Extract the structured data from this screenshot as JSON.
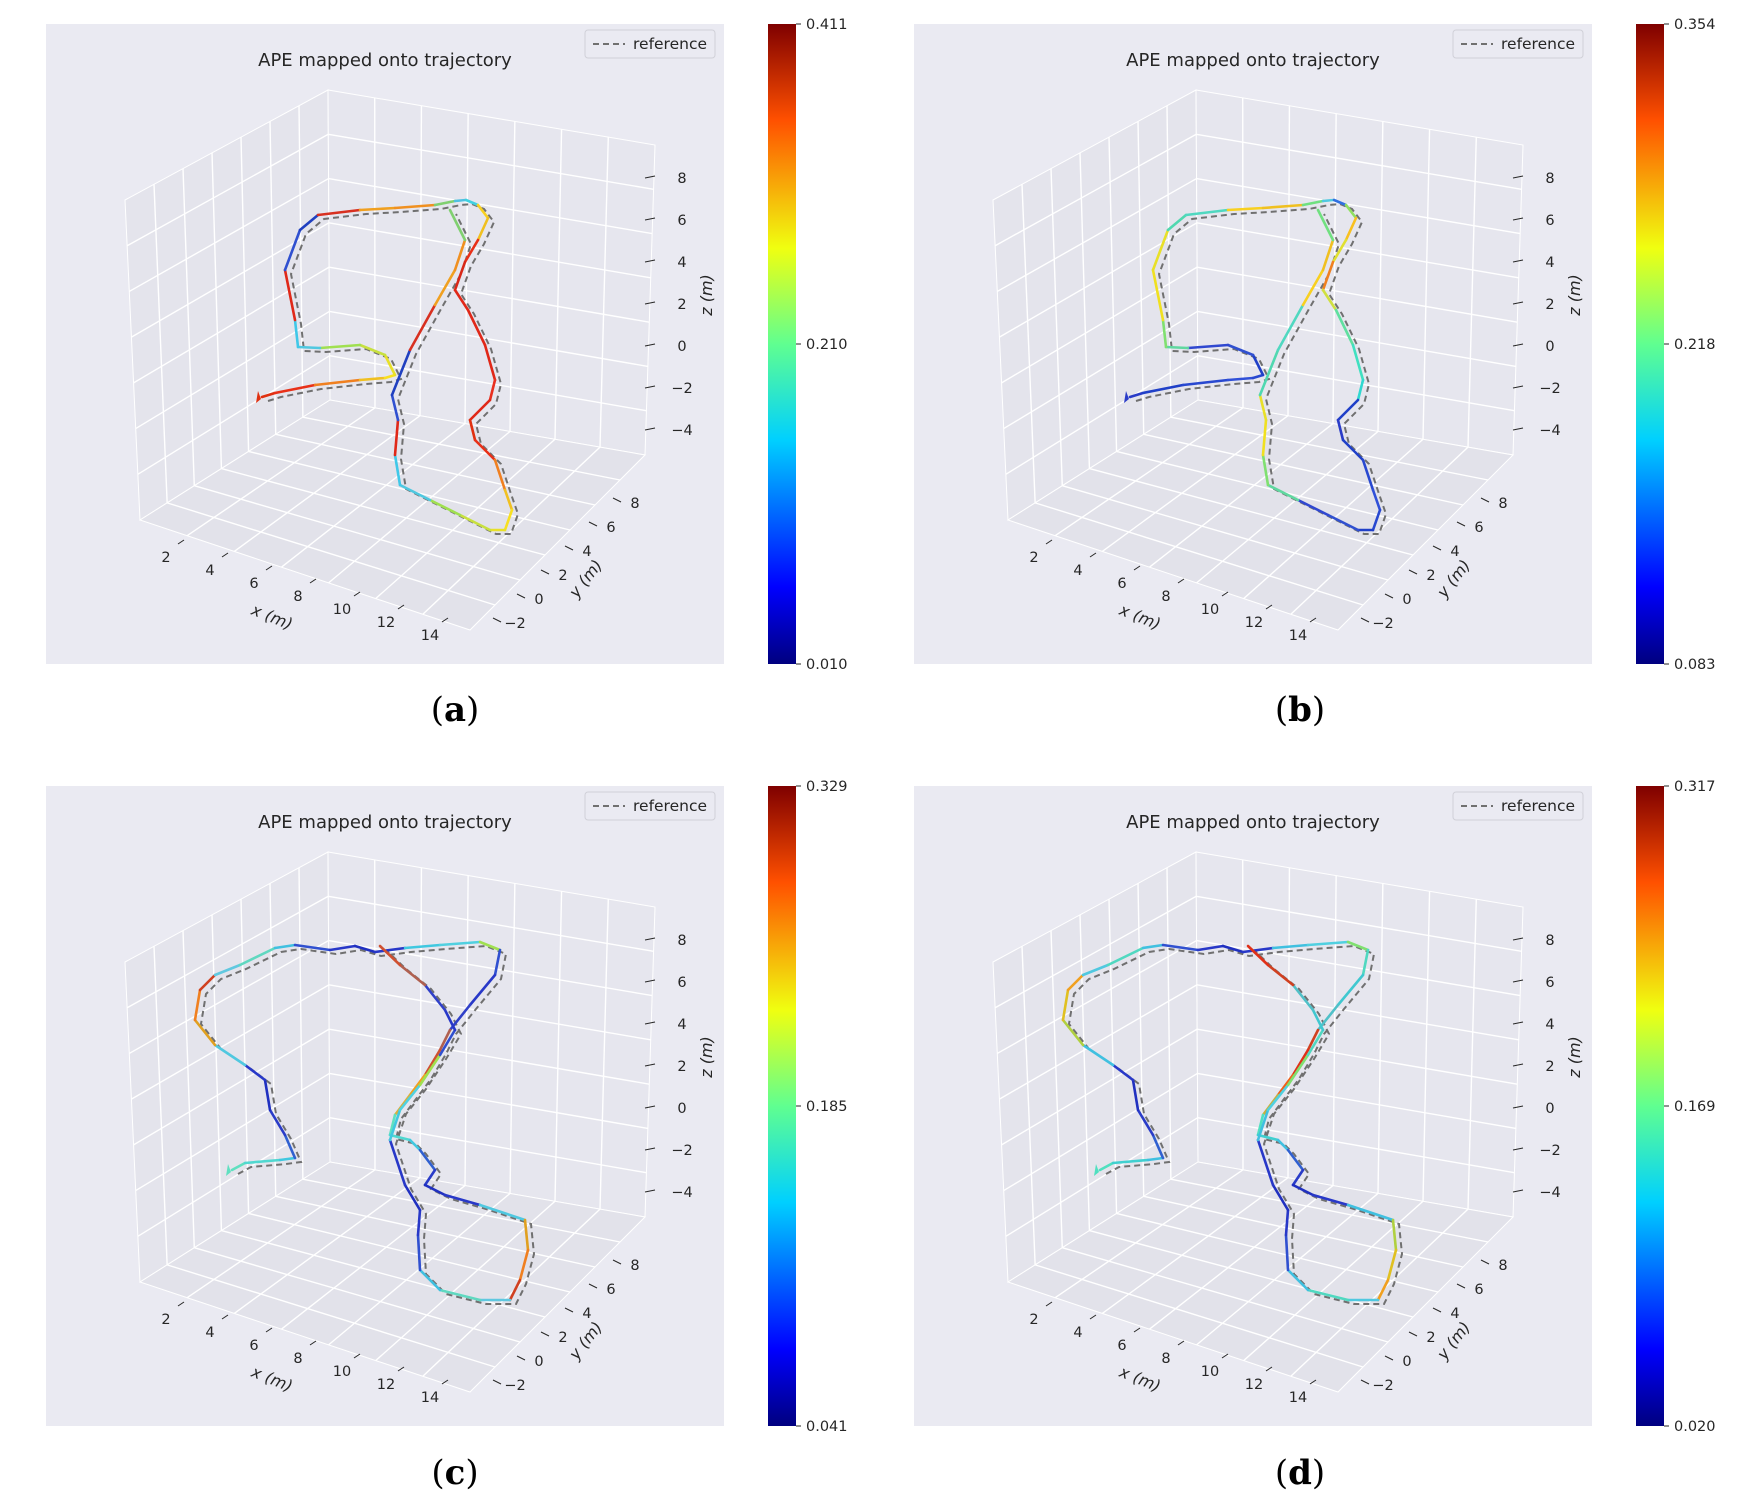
{
  "chart_data": [
    {
      "panel": "a",
      "type": "line",
      "subtype": "3d-trajectory",
      "title": "APE mapped onto trajectory",
      "legend": [
        "reference"
      ],
      "legend_position": "top-right",
      "xlabel": "x (m)",
      "ylabel": "y (m)",
      "zlabel": "z (m)",
      "x_ticks": [
        "2",
        "4",
        "6",
        "8",
        "10",
        "12",
        "14"
      ],
      "y_ticks": [
        "−2",
        "0",
        "2",
        "4",
        "6",
        "8"
      ],
      "z_ticks": [
        "−4",
        "−2",
        "0",
        "2",
        "4",
        "6",
        "8"
      ],
      "grid": true,
      "colorbar": {
        "colormap": "jet",
        "min": "0.010",
        "mid": "0.210",
        "max": "0.411"
      },
      "trajectory_colors": [
        "#e03010",
        "#e83018",
        "#f08020",
        "#f0c020",
        "#f8e020",
        "#e8e028",
        "#c8e040",
        "#a0e050",
        "#50c8e0",
        "#40c8e8",
        "#e02818",
        "#3050d0",
        "#2040c0",
        "#d83020",
        "#f0a020",
        "#f09020",
        "#80d070",
        "#50c0e0",
        "#40d0e0",
        "#f8d020",
        "#f0c020",
        "#e83018",
        "#d82818",
        "#e02818",
        "#e02818",
        "#e02818",
        "#e83020",
        "#e02818"
      ]
    },
    {
      "panel": "b",
      "type": "line",
      "subtype": "3d-trajectory",
      "title": "APE mapped onto trajectory",
      "legend": [
        "reference"
      ],
      "legend_position": "top-right",
      "xlabel": "x (m)",
      "ylabel": "y (m)",
      "zlabel": "z (m)",
      "x_ticks": [
        "2",
        "4",
        "6",
        "8",
        "10",
        "12",
        "14"
      ],
      "y_ticks": [
        "−2",
        "0",
        "2",
        "4",
        "6",
        "8"
      ],
      "z_ticks": [
        "−4",
        "−2",
        "0",
        "2",
        "4",
        "6",
        "8"
      ],
      "grid": true,
      "colorbar": {
        "colormap": "jet",
        "min": "0.083",
        "mid": "0.218",
        "max": "0.354"
      },
      "trajectory_colors": [
        "#2a3cc8",
        "#2040c8",
        "#2848d0",
        "#3050d8",
        "#2848d0",
        "#2040c8",
        "#3050d0",
        "#3048d0",
        "#60d8a0",
        "#80e070",
        "#f0e020",
        "#e8e028",
        "#50d8b0",
        "#50d8c0",
        "#f8d020",
        "#f0c020",
        "#70e080",
        "#50c8e0",
        "#3070e0",
        "#90e060",
        "#f8c020",
        "#e0e030",
        "#f08020",
        "#d0e040",
        "#60e0a0",
        "#40e0c0",
        "#30d8d0",
        "#2040c8"
      ]
    },
    {
      "panel": "c",
      "type": "line",
      "subtype": "3d-trajectory",
      "title": "APE mapped onto trajectory",
      "legend": [
        "reference"
      ],
      "legend_position": "top-right",
      "xlabel": "x (m)",
      "ylabel": "y (m)",
      "zlabel": "z (m)",
      "x_ticks": [
        "2",
        "4",
        "6",
        "8",
        "10",
        "12",
        "14"
      ],
      "y_ticks": [
        "−2",
        "0",
        "2",
        "4",
        "6",
        "8"
      ],
      "z_ticks": [
        "−4",
        "−2",
        "0",
        "2",
        "4",
        "6",
        "8"
      ],
      "grid": true,
      "colorbar": {
        "colormap": "jet",
        "min": "0.041",
        "mid": "0.185",
        "max": "0.329"
      },
      "trajectory_colors": [
        "#60e0c0",
        "#50d8d0",
        "#40c8e0",
        "#3060d0",
        "#2a3cc8",
        "#2030c0",
        "#2838c8",
        "#50c8e0",
        "#e0a020",
        "#f08020",
        "#d04020",
        "#60c8e0",
        "#60d8c0",
        "#40c0e0",
        "#3050d0",
        "#2838c8",
        "#2030c0",
        "#2838c8",
        "#40c8e0",
        "#50d0e0",
        "#a0e050",
        "#3050d0",
        "#2838c8",
        "#3040c8",
        "#b06050",
        "#d05030",
        "#f0a020",
        "#d8b040"
      ]
    },
    {
      "panel": "d",
      "type": "line",
      "subtype": "3d-trajectory",
      "title": "APE mapped onto trajectory",
      "legend": [
        "reference"
      ],
      "legend_position": "top-right",
      "xlabel": "x (m)",
      "ylabel": "y (m)",
      "zlabel": "z (m)",
      "x_ticks": [
        "2",
        "4",
        "6",
        "8",
        "10",
        "12",
        "14"
      ],
      "y_ticks": [
        "−2",
        "0",
        "2",
        "4",
        "6",
        "8"
      ],
      "z_ticks": [
        "−4",
        "−2",
        "0",
        "2",
        "4",
        "6",
        "8"
      ],
      "grid": true,
      "colorbar": {
        "colormap": "jet",
        "min": "0.020",
        "mid": "0.169",
        "max": "0.317"
      },
      "trajectory_colors": [
        "#50e0c0",
        "#40d0d0",
        "#40c0e0",
        "#3060d0",
        "#2a3cc8",
        "#2030c0",
        "#2838c8",
        "#40c0e0",
        "#b0d040",
        "#e0c020",
        "#f0a020",
        "#50c8e0",
        "#50d8c0",
        "#40c0e0",
        "#3050d0",
        "#2838c8",
        "#2030c0",
        "#2838c8",
        "#40c0e0",
        "#50d0e0",
        "#80e070",
        "#50d8c0",
        "#40c8d0",
        "#50c0c8",
        "#d04020",
        "#e03018",
        "#f06018",
        "#c8b040"
      ]
    }
  ],
  "captions": [
    "(a)",
    "(b)",
    "(c)",
    "(d)"
  ],
  "caption_letters": [
    "a",
    "b",
    "c",
    "d"
  ]
}
